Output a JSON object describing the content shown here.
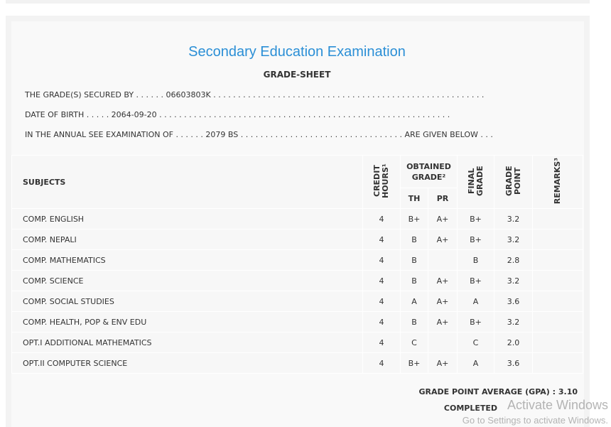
{
  "title": "Secondary Education Examination",
  "subtitle": "GRADE-SHEET",
  "lines": {
    "secured_by": "THE GRADE(S) SECURED BY . . . . . . 06603803K . . . . . . . . . . . . . . . . . . . . . . . . . . . . . . . . . . . . . . . . . . . . . . . . . . . . . . .",
    "dob": "DATE OF BIRTH . . . . . 2064-09-20 . . . . . . . . . . . . . . . . . . . . . . . . . . . . . . . . . . . . . . . . . . . . . . . . . . . . . . . . . . .",
    "exam": "IN THE ANNUAL SEE EXAMINATION OF . . . . . . 2079 BS . . . . . . . . . . . . . . . . . . . . . . . . . . . . . . . . . ARE GIVEN BELOW . . ."
  },
  "headers": {
    "subjects": "SUBJECTS",
    "credit": "CREDIT HOURS¹",
    "obtained": "OBTAINED GRADE²",
    "th": "TH",
    "pr": "PR",
    "final": "FINAL GRADE",
    "gp": "GRADE POINT",
    "remarks": "REMARKS³"
  },
  "rows": [
    {
      "subject": "COMP. ENGLISH",
      "credit": "4",
      "th": "B+",
      "pr": "A+",
      "final": "B+",
      "gp": "3.2"
    },
    {
      "subject": "COMP. NEPALI",
      "credit": "4",
      "th": "B",
      "pr": "A+",
      "final": "B+",
      "gp": "3.2"
    },
    {
      "subject": "COMP. MATHEMATICS",
      "credit": "4",
      "th": "B",
      "pr": "",
      "final": "B",
      "gp": "2.8"
    },
    {
      "subject": "COMP. SCIENCE",
      "credit": "4",
      "th": "B",
      "pr": "A+",
      "final": "B+",
      "gp": "3.2"
    },
    {
      "subject": "COMP. SOCIAL STUDIES",
      "credit": "4",
      "th": "A",
      "pr": "A+",
      "final": "A",
      "gp": "3.6"
    },
    {
      "subject": "COMP. HEALTH, POP & ENV EDU",
      "credit": "4",
      "th": "B",
      "pr": "A+",
      "final": "B+",
      "gp": "3.2"
    },
    {
      "subject": "OPT.I ADDITIONAL MATHEMATICS",
      "credit": "4",
      "th": "C",
      "pr": "",
      "final": "C",
      "gp": "2.0"
    },
    {
      "subject": "OPT.II COMPUTER SCIENCE",
      "credit": "4",
      "th": "B+",
      "pr": "A+",
      "final": "A",
      "gp": "3.6"
    }
  ],
  "gpa": "GRADE POINT AVERAGE (GPA) : 3.10",
  "status": "COMPLETED",
  "watermark": {
    "line1": "Activate Windows",
    "line2": "Go to Settings to activate Windows."
  }
}
